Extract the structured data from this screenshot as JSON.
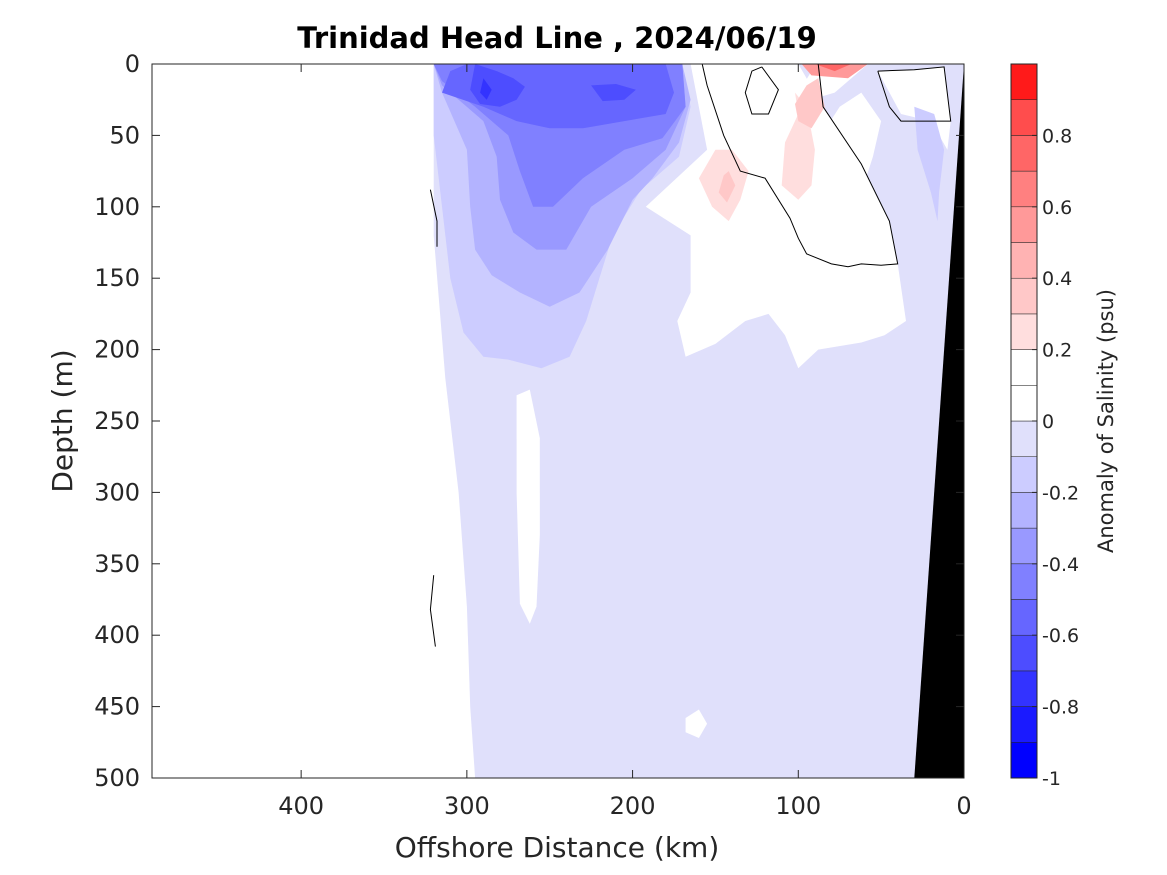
{
  "chart_data": {
    "type": "contour",
    "title": "Trinidad Head Line , 2024/06/19",
    "xlabel": "Offshore Distance (km)",
    "ylabel": "Depth (m)",
    "xlim": [
      490,
      0
    ],
    "ylim": [
      500,
      0
    ],
    "x_reversed": true,
    "y_reversed": true,
    "x_ticks": [
      400,
      300,
      200,
      100,
      0
    ],
    "y_ticks": [
      0,
      50,
      100,
      150,
      200,
      250,
      300,
      350,
      400,
      450,
      500
    ],
    "colorbar": {
      "label": "Anomaly of Salinity (psu)",
      "range": [
        -1,
        1
      ],
      "levels": [
        -1,
        -0.9,
        -0.8,
        -0.7,
        -0.6,
        -0.5,
        -0.4,
        -0.3,
        -0.2,
        -0.1,
        0,
        0.1,
        0.2,
        0.3,
        0.4,
        0.5,
        0.6,
        0.7,
        0.8,
        0.9,
        1
      ],
      "tick_values": [
        0.8,
        0.6,
        0.4,
        0.2,
        0,
        -0.2,
        -0.4,
        -0.6,
        -0.8,
        -1
      ],
      "tick_labels": [
        "0.8",
        "0.6",
        "0.4",
        "0.2",
        "0",
        "-0.2",
        "-0.4",
        "-0.6",
        "-0.8",
        "-1"
      ],
      "colors": [
        "#0000ff",
        "#1a1aff",
        "#3333ff",
        "#4d4dff",
        "#6666ff",
        "#8080ff",
        "#9999ff",
        "#b3b3ff",
        "#ccccff",
        "#e0e0fb",
        "#ffffff",
        "#ffffff",
        "#ffdede",
        "#ffc8c8",
        "#ffb3b3",
        "#ff9999",
        "#ff8080",
        "#ff6666",
        "#ff4d4d",
        "#ff1a1a"
      ]
    },
    "contour_line_level": 0,
    "bathymetry_color": "#000000",
    "regions": [
      {
        "value": -0.1,
        "points": [
          [
            320,
            0
          ],
          [
            0,
            0
          ],
          [
            0,
            500
          ],
          [
            295,
            500
          ],
          [
            298,
            450
          ],
          [
            300,
            380
          ],
          [
            305,
            300
          ],
          [
            313,
            220
          ],
          [
            320,
            120
          ]
        ]
      },
      {
        "value": 0.05,
        "points": [
          [
            270,
            232
          ],
          [
            262,
            228
          ],
          [
            256,
            262
          ],
          [
            256,
            330
          ],
          [
            258,
            380
          ],
          [
            262,
            392
          ],
          [
            268,
            378
          ],
          [
            270,
            300
          ]
        ]
      },
      {
        "value": 0.05,
        "points": [
          [
            165,
            0
          ],
          [
            100,
            0
          ],
          [
            85,
            30
          ],
          [
            62,
            70
          ],
          [
            45,
            110
          ],
          [
            40,
            140
          ],
          [
            35,
            180
          ],
          [
            48,
            190
          ],
          [
            62,
            195
          ],
          [
            88,
            200
          ],
          [
            100,
            213
          ],
          [
            108,
            190
          ],
          [
            118,
            175
          ],
          [
            132,
            180
          ],
          [
            150,
            196
          ],
          [
            168,
            205
          ],
          [
            173,
            180
          ],
          [
            165,
            160
          ],
          [
            165,
            120
          ],
          [
            192,
            100
          ],
          [
            155,
            60
          ]
        ]
      },
      {
        "value": 0.05,
        "points": [
          [
            52,
            5
          ],
          [
            30,
            4
          ],
          [
            12,
            2
          ],
          [
            8,
            40
          ],
          [
            10,
            60
          ],
          [
            20,
            40
          ],
          [
            38,
            35
          ]
        ]
      },
      {
        "value": 0.05,
        "points": [
          [
            168,
            458
          ],
          [
            160,
            452
          ],
          [
            155,
            462
          ],
          [
            160,
            472
          ],
          [
            168,
            468
          ]
        ]
      },
      {
        "value": -0.2,
        "points": [
          [
            320,
            0
          ],
          [
            170,
            0
          ],
          [
            165,
            30
          ],
          [
            172,
            65
          ],
          [
            195,
            88
          ],
          [
            212,
            120
          ],
          [
            220,
            150
          ],
          [
            228,
            180
          ],
          [
            238,
            205
          ],
          [
            255,
            213
          ],
          [
            275,
            207
          ],
          [
            290,
            205
          ],
          [
            302,
            188
          ],
          [
            310,
            150
          ],
          [
            315,
            100
          ],
          [
            320,
            50
          ]
        ]
      },
      {
        "value": -0.2,
        "points": [
          [
            30,
            30
          ],
          [
            18,
            35
          ],
          [
            12,
            60
          ],
          [
            15,
            90
          ],
          [
            16,
            110
          ],
          [
            20,
            90
          ],
          [
            28,
            60
          ]
        ]
      },
      {
        "value": -0.3,
        "points": [
          [
            320,
            0
          ],
          [
            170,
            0
          ],
          [
            165,
            25
          ],
          [
            172,
            55
          ],
          [
            188,
            80
          ],
          [
            200,
            95
          ],
          [
            215,
            130
          ],
          [
            232,
            160
          ],
          [
            250,
            170
          ],
          [
            268,
            160
          ],
          [
            285,
            148
          ],
          [
            295,
            130
          ],
          [
            298,
            100
          ],
          [
            300,
            60
          ],
          [
            315,
            20
          ]
        ]
      },
      {
        "value": -0.4,
        "points": [
          [
            320,
            0
          ],
          [
            170,
            0
          ],
          [
            168,
            30
          ],
          [
            180,
            60
          ],
          [
            200,
            80
          ],
          [
            225,
            100
          ],
          [
            240,
            130
          ],
          [
            258,
            130
          ],
          [
            272,
            118
          ],
          [
            280,
            95
          ],
          [
            282,
            65
          ],
          [
            290,
            40
          ],
          [
            315,
            15
          ]
        ]
      },
      {
        "value": -0.5,
        "points": [
          [
            320,
            0
          ],
          [
            170,
            0
          ],
          [
            168,
            30
          ],
          [
            182,
            52
          ],
          [
            205,
            60
          ],
          [
            230,
            80
          ],
          [
            248,
            100
          ],
          [
            260,
            100
          ],
          [
            268,
            75
          ],
          [
            275,
            50
          ],
          [
            295,
            30
          ],
          [
            315,
            12
          ]
        ]
      },
      {
        "value": -0.6,
        "points": [
          [
            300,
            0
          ],
          [
            180,
            0
          ],
          [
            175,
            20
          ],
          [
            180,
            35
          ],
          [
            205,
            40
          ],
          [
            230,
            45
          ],
          [
            250,
            45
          ],
          [
            270,
            40
          ],
          [
            290,
            30
          ],
          [
            315,
            20
          ],
          [
            310,
            5
          ]
        ]
      },
      {
        "value": -0.7,
        "points": [
          [
            295,
            0
          ],
          [
            282,
            5
          ],
          [
            272,
            10
          ],
          [
            265,
            16
          ],
          [
            270,
            25
          ],
          [
            280,
            30
          ],
          [
            292,
            28
          ],
          [
            298,
            18
          ]
        ]
      },
      {
        "value": -0.7,
        "points": [
          [
            225,
            15
          ],
          [
            210,
            14
          ],
          [
            198,
            18
          ],
          [
            205,
            25
          ],
          [
            218,
            26
          ]
        ]
      },
      {
        "value": -0.8,
        "points": [
          [
            290,
            10
          ],
          [
            285,
            18
          ],
          [
            288,
            25
          ],
          [
            292,
            20
          ]
        ]
      },
      {
        "value": 0.15,
        "points": [
          [
            154,
            40
          ],
          [
            145,
            50
          ],
          [
            135,
            72
          ],
          [
            128,
            100
          ],
          [
            118,
            125
          ],
          [
            108,
            140
          ],
          [
            95,
            150
          ],
          [
            82,
            140
          ],
          [
            70,
            120
          ],
          [
            62,
            90
          ],
          [
            55,
            65
          ],
          [
            50,
            40
          ],
          [
            62,
            20
          ],
          [
            75,
            30
          ],
          [
            85,
            48
          ],
          [
            100,
            70
          ],
          [
            110,
            55
          ],
          [
            105,
            30
          ],
          [
            92,
            5
          ],
          [
            98,
            0
          ],
          [
            58,
            0
          ],
          [
            78,
            20
          ],
          [
            122,
            35
          ]
        ]
      },
      {
        "value": 0.25,
        "points": [
          [
            150,
            60
          ],
          [
            140,
            60
          ],
          [
            130,
            75
          ],
          [
            135,
            95
          ],
          [
            142,
            110
          ],
          [
            152,
            100
          ],
          [
            160,
            80
          ]
        ]
      },
      {
        "value": 0.25,
        "points": [
          [
            102,
            20
          ],
          [
            95,
            30
          ],
          [
            90,
            60
          ],
          [
            92,
            85
          ],
          [
            100,
            95
          ],
          [
            110,
            85
          ],
          [
            108,
            55
          ],
          [
            100,
            35
          ]
        ]
      },
      {
        "value": 0.35,
        "points": [
          [
            142,
            75
          ],
          [
            138,
            85
          ],
          [
            143,
            97
          ],
          [
            148,
            90
          ],
          [
            145,
            78
          ]
        ]
      },
      {
        "value": 0.35,
        "points": [
          [
            95,
            15
          ],
          [
            88,
            10
          ],
          [
            84,
            30
          ],
          [
            92,
            45
          ],
          [
            100,
            40
          ],
          [
            102,
            28
          ]
        ]
      },
      {
        "value": 0.55,
        "points": [
          [
            98,
            0
          ],
          [
            58,
            0
          ],
          [
            70,
            10
          ],
          [
            92,
            8
          ]
        ]
      },
      {
        "value": 0.75,
        "points": [
          [
            90,
            0
          ],
          [
            68,
            0
          ],
          [
            78,
            5
          ]
        ]
      }
    ],
    "contour_lines": [
      [
        [
          88,
          0
        ],
        [
          85,
          30
        ],
        [
          62,
          70
        ],
        [
          45,
          110
        ],
        [
          40,
          140
        ],
        [
          50,
          141
        ],
        [
          62,
          140
        ],
        [
          70,
          142
        ],
        [
          80,
          140
        ],
        [
          95,
          133
        ],
        [
          100,
          122
        ],
        [
          105,
          108
        ],
        [
          120,
          80
        ],
        [
          135,
          75
        ],
        [
          145,
          50
        ],
        [
          155,
          15
        ],
        [
          158,
          0
        ]
      ],
      [
        [
          122,
          2
        ],
        [
          112,
          18
        ],
        [
          118,
          35
        ],
        [
          128,
          35
        ],
        [
          132,
          20
        ],
        [
          128,
          5
        ],
        [
          122,
          2
        ]
      ],
      [
        [
          52,
          5
        ],
        [
          30,
          4
        ],
        [
          12,
          2
        ],
        [
          8,
          40
        ],
        [
          30,
          40
        ],
        [
          38,
          40
        ],
        [
          45,
          30
        ],
        [
          52,
          5
        ]
      ],
      [
        [
          322,
          88
        ],
        [
          318,
          110
        ],
        [
          318,
          128
        ]
      ],
      [
        [
          320,
          358
        ],
        [
          322,
          382
        ],
        [
          319,
          408
        ]
      ]
    ],
    "bathymetry": [
      [
        0,
        0
      ],
      [
        30,
        500
      ],
      [
        0,
        500
      ]
    ]
  }
}
